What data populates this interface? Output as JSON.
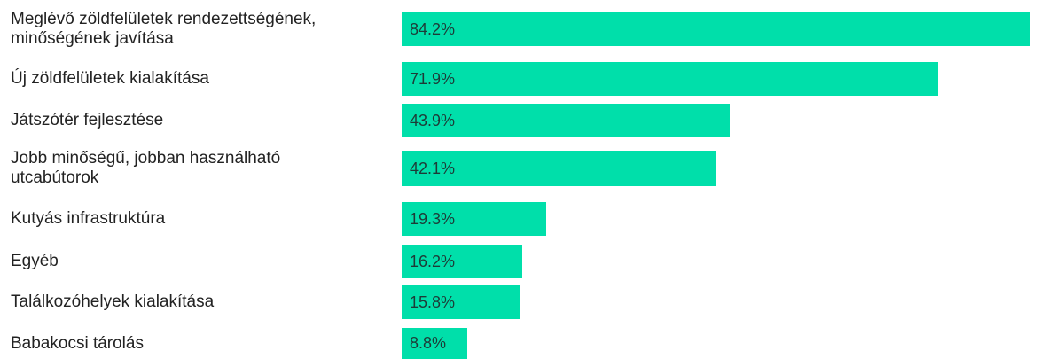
{
  "chart_data": {
    "type": "bar",
    "orientation": "horizontal",
    "categories": [
      "Meglévő zöldfelületek rendezettségének,\nminőségének javítása",
      "Új zöldfelületek kialakítása",
      "Játszótér fejlesztése",
      "Jobb minőségű, jobban használható\nutcabútorok",
      "Kutyás infrastruktúra",
      "Egyéb",
      "Találkozóhelyek kialakítása",
      "Babakocsi tárolás"
    ],
    "values": [
      84.2,
      71.9,
      43.9,
      42.1,
      19.3,
      16.2,
      15.8,
      8.8
    ],
    "value_labels": [
      "84.2%",
      "71.9%",
      "43.9%",
      "42.1%",
      "19.3%",
      "16.2%",
      "15.8%",
      "8.8%"
    ],
    "color": "#00dfaa"
  }
}
